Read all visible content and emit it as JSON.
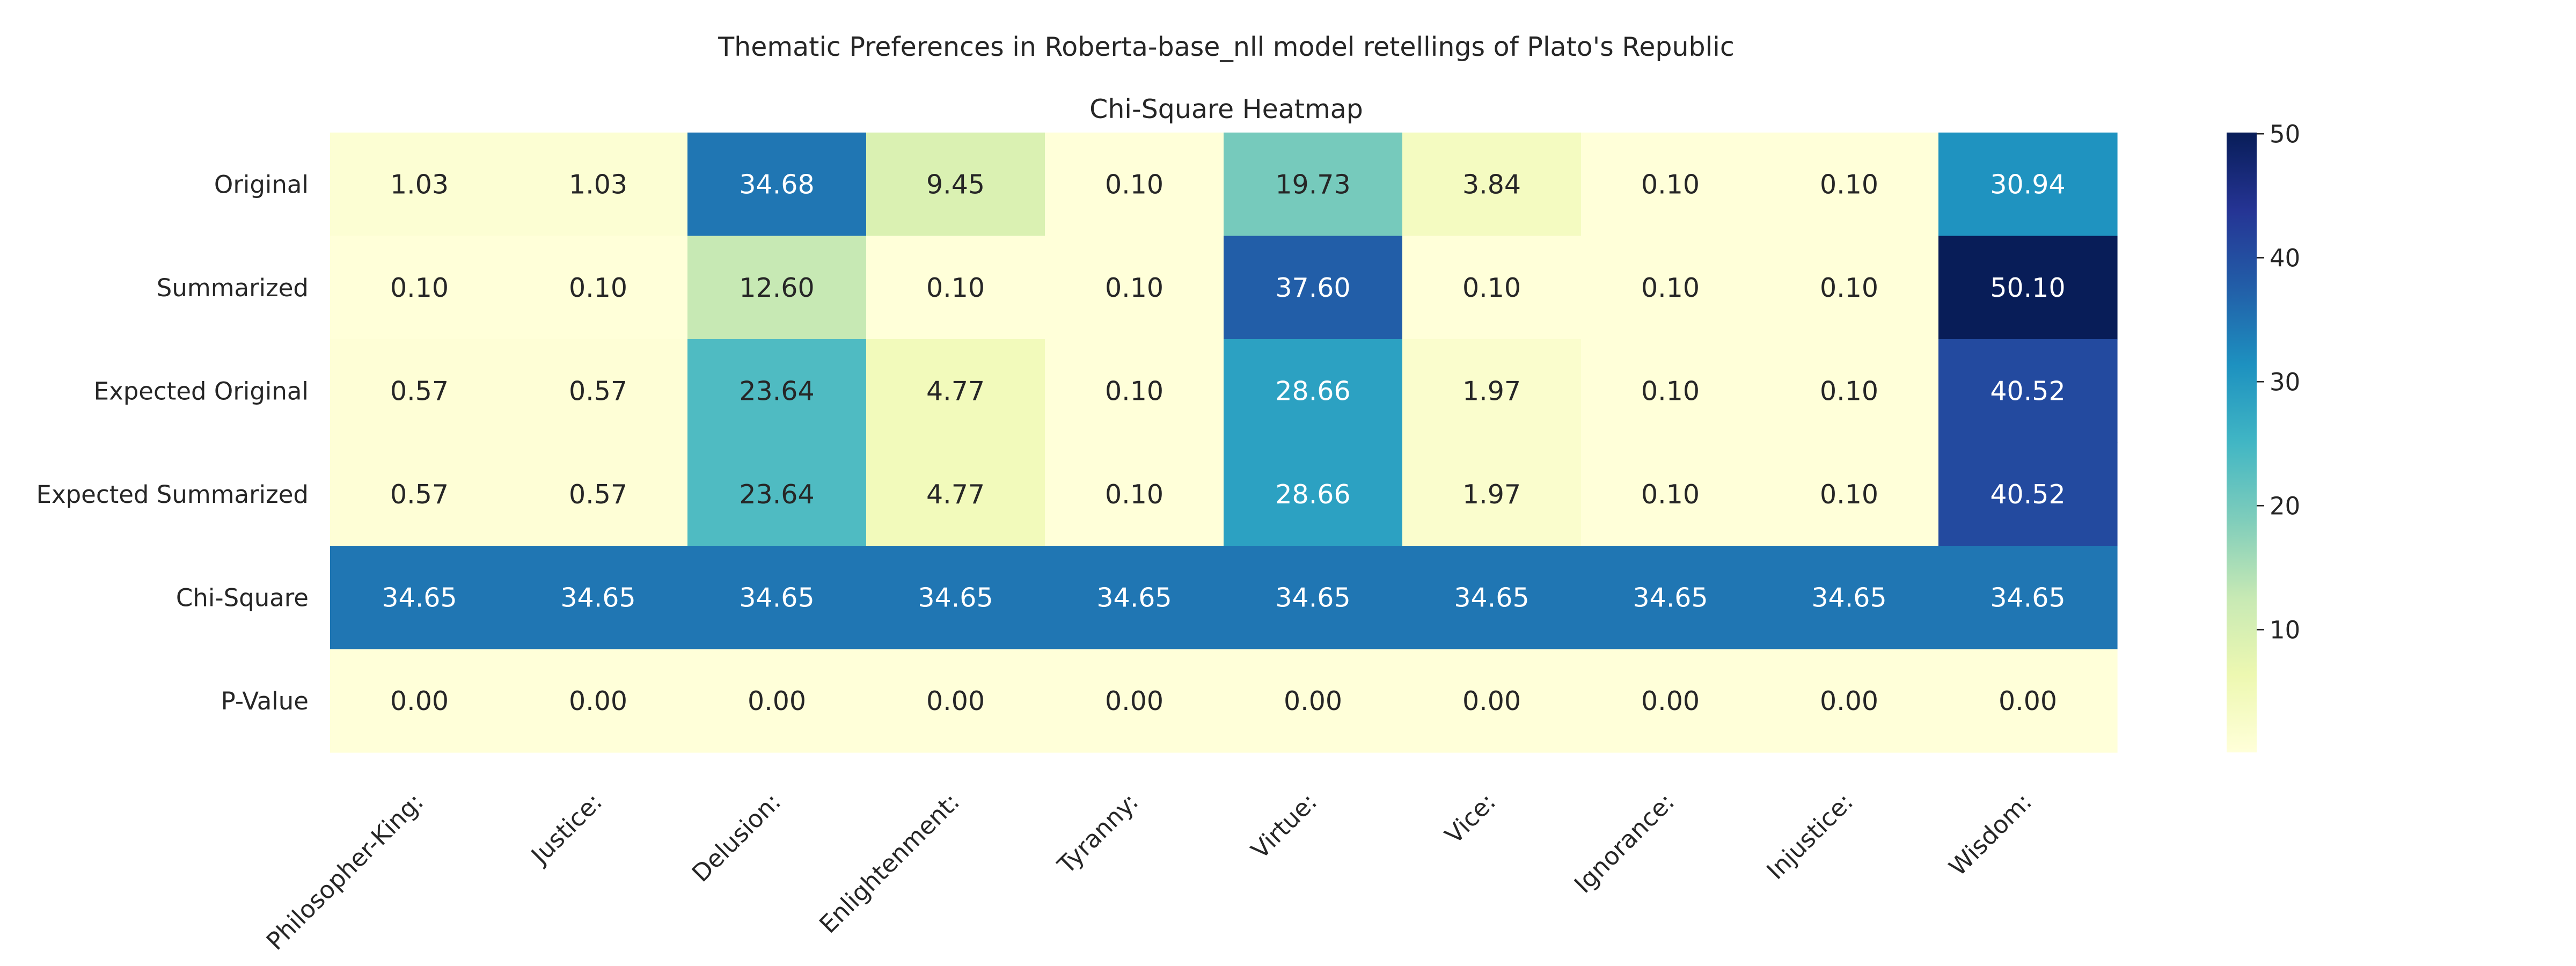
{
  "figure": {
    "suptitle": "Thematic Preferences in Roberta-base_nll model retellings of Plato's Republic"
  },
  "chart_data": {
    "type": "heatmap",
    "title": "Chi-Square Heatmap",
    "colormap": "YlGnBu",
    "value_range": [
      0.1,
      50.1
    ],
    "columns": [
      "Philosopher-King:",
      "Justice:",
      "Delusion:",
      "Enlightenment:",
      "Tyranny:",
      "Virtue:",
      "Vice:",
      "Ignorance:",
      "Injustice:",
      "Wisdom:"
    ],
    "rows": [
      "Original",
      "Summarized",
      "Expected Original",
      "Expected Summarized",
      "Chi-Square",
      "P-Value"
    ],
    "values": [
      [
        1.03,
        1.03,
        34.68,
        9.45,
        0.1,
        19.73,
        3.84,
        0.1,
        0.1,
        30.94
      ],
      [
        0.1,
        0.1,
        12.6,
        0.1,
        0.1,
        37.6,
        0.1,
        0.1,
        0.1,
        50.1
      ],
      [
        0.57,
        0.57,
        23.64,
        4.77,
        0.1,
        28.66,
        1.97,
        0.1,
        0.1,
        40.52
      ],
      [
        0.57,
        0.57,
        23.64,
        4.77,
        0.1,
        28.66,
        1.97,
        0.1,
        0.1,
        40.52
      ],
      [
        34.65,
        34.65,
        34.65,
        34.65,
        34.65,
        34.65,
        34.65,
        34.65,
        34.65,
        34.65
      ],
      [
        0.0,
        0.0,
        0.0,
        0.0,
        0.0,
        0.0,
        0.0,
        0.0,
        0.0,
        0.0
      ]
    ],
    "colorbar": {
      "ticks": [
        10,
        20,
        30,
        40,
        50
      ],
      "tick_labels": [
        "10",
        "20",
        "30",
        "40",
        "50"
      ]
    }
  }
}
